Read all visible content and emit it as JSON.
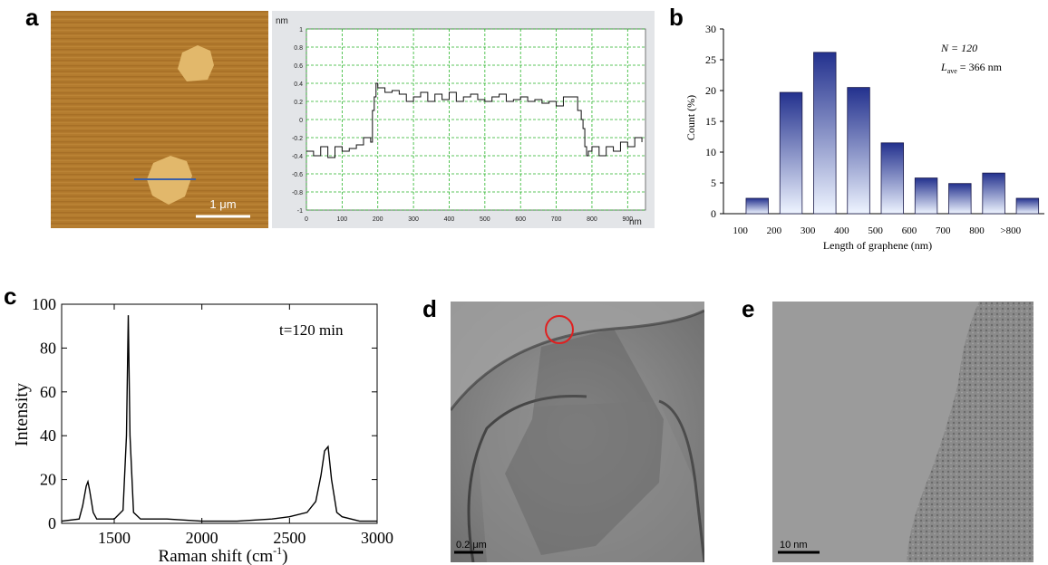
{
  "panels": {
    "a": {
      "letter": "a",
      "afm": {
        "scale_bar_label": "1 μm",
        "colors": {
          "background": "#b07a2c",
          "flake": "#e2b86b",
          "line_scan": "#3a5fa8"
        }
      },
      "profile": {
        "y_unit": "nm",
        "x_unit": "nm",
        "y_ticks": [
          "1",
          "0.8",
          "0.6",
          "0.4",
          "0.2",
          "0",
          "-0.2",
          "-0.4",
          "-0.6",
          "-0.8",
          "-1"
        ],
        "x_ticks": [
          "0",
          "100",
          "200",
          "300",
          "400",
          "500",
          "600",
          "700",
          "800",
          "900"
        ]
      }
    },
    "b": {
      "letter": "b"
    },
    "c": {
      "letter": "c"
    },
    "d": {
      "letter": "d",
      "scale_bar_label": "0.2 μm"
    },
    "e": {
      "letter": "e",
      "scale_bar_label": "10 nm"
    }
  },
  "chart_data": [
    {
      "id": "height-profile",
      "type": "line",
      "xlabel": "nm",
      "ylabel": "nm",
      "xlim": [
        0,
        950
      ],
      "ylim": [
        -1,
        1
      ],
      "grid": true,
      "x": [
        0,
        20,
        40,
        60,
        80,
        100,
        120,
        140,
        160,
        180,
        185,
        190,
        195,
        200,
        220,
        240,
        260,
        280,
        300,
        320,
        340,
        360,
        380,
        400,
        420,
        440,
        460,
        480,
        500,
        520,
        540,
        560,
        580,
        600,
        620,
        640,
        660,
        680,
        700,
        720,
        760,
        770,
        775,
        780,
        785,
        790,
        800,
        820,
        840,
        860,
        880,
        900,
        920,
        940
      ],
      "y": [
        -0.35,
        -0.4,
        -0.3,
        -0.42,
        -0.3,
        -0.35,
        -0.32,
        -0.28,
        -0.2,
        -0.25,
        0.1,
        0.25,
        0.4,
        0.35,
        0.3,
        0.32,
        0.28,
        0.2,
        0.25,
        0.3,
        0.2,
        0.28,
        0.22,
        0.3,
        0.2,
        0.25,
        0.28,
        0.22,
        0.2,
        0.25,
        0.28,
        0.2,
        0.22,
        0.25,
        0.2,
        0.22,
        0.18,
        0.2,
        0.15,
        0.25,
        0.1,
        0.0,
        -0.1,
        -0.3,
        -0.4,
        -0.35,
        -0.3,
        -0.4,
        -0.3,
        -0.35,
        -0.25,
        -0.3,
        -0.2,
        -0.25
      ]
    },
    {
      "id": "length-histogram",
      "type": "bar",
      "categories": [
        "100",
        "200",
        "300",
        "400",
        "500",
        "600",
        "700",
        "800",
        ">800"
      ],
      "values": [
        2.5,
        19.7,
        26.2,
        20.5,
        11.5,
        5.8,
        4.9,
        6.6,
        2.5
      ],
      "xlabel": "Length of graphene (nm)",
      "ylabel": "Count (%)",
      "ylim": [
        0,
        30
      ],
      "yticks": [
        0,
        5,
        10,
        15,
        20,
        25,
        30
      ],
      "annotations": {
        "n_label": "N = 120",
        "l_label": "L",
        "l_sub": "ave",
        "l_value": " = 366 nm"
      },
      "colors": {
        "bar_top": "#23318e",
        "bar_bottom": "#eef4ff"
      }
    },
    {
      "id": "raman-spectrum",
      "type": "line",
      "xlabel": "Raman shift (cm",
      "xlabel_sup": "-1",
      "xlabel_end": ")",
      "ylabel": "Intensity",
      "annotation": "t=120 min",
      "xlim": [
        1200,
        3000
      ],
      "ylim": [
        0,
        100
      ],
      "xticks": [
        1500,
        2000,
        2500,
        3000
      ],
      "yticks": [
        0,
        20,
        40,
        60,
        80,
        100
      ],
      "x": [
        1200,
        1300,
        1320,
        1340,
        1350,
        1360,
        1380,
        1400,
        1500,
        1550,
        1570,
        1580,
        1590,
        1610,
        1650,
        1800,
        2000,
        2200,
        2400,
        2500,
        2600,
        2650,
        2680,
        2700,
        2720,
        2740,
        2770,
        2800,
        2900,
        3000
      ],
      "y": [
        1,
        2,
        8,
        17,
        19,
        15,
        5,
        2,
        2,
        6,
        40,
        95,
        40,
        5,
        2,
        2,
        1,
        1,
        2,
        3,
        5,
        10,
        22,
        33,
        35,
        20,
        5,
        3,
        1,
        1
      ]
    }
  ]
}
